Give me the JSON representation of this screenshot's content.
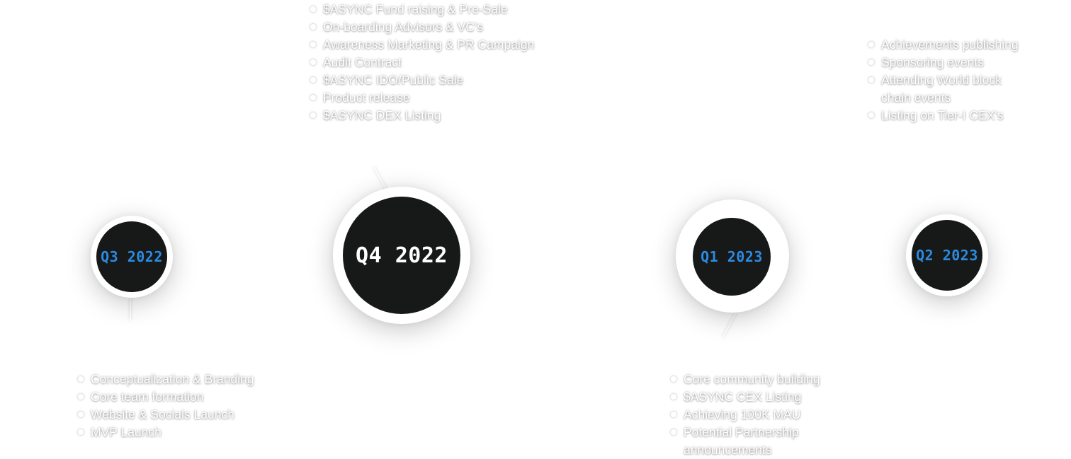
{
  "colors": {
    "background": "#ffffff",
    "node_dark": "#171818",
    "accent_blue": "#2b8be0",
    "label_white": "#ffffff",
    "list_text": "#ffffff"
  },
  "milestones": [
    {
      "label": "Q3 2022",
      "label_color": "#2b8be0",
      "items": [
        "Conceptualization & Branding",
        "Core team formation",
        "Website & Socials Launch",
        "MVP Launch"
      ]
    },
    {
      "label": "Q4 2022",
      "label_color": "#ffffff",
      "items": [
        "$ASYNC Fund raising & Pre-Sale",
        "On-boarding Advisors & VC's",
        "Awareness Marketing & PR Campaign",
        "Audit Contract",
        "$ASYNC IDO/Public Sale",
        "Product release",
        "$ASYNC DEX Listing"
      ]
    },
    {
      "label": "Q1 2023",
      "label_color": "#2b8be0",
      "items": [
        "Core community building",
        "$ASYNC CEX Listing",
        "Achieving 100K MAU",
        "Potential Partnership announcements"
      ]
    },
    {
      "label": "Q2 2023",
      "label_color": "#2b8be0",
      "items": [
        "Achievements publishing",
        "Sponsoring events",
        "Attending World block chain events",
        "Listing on Tier-I CEX's"
      ]
    }
  ]
}
